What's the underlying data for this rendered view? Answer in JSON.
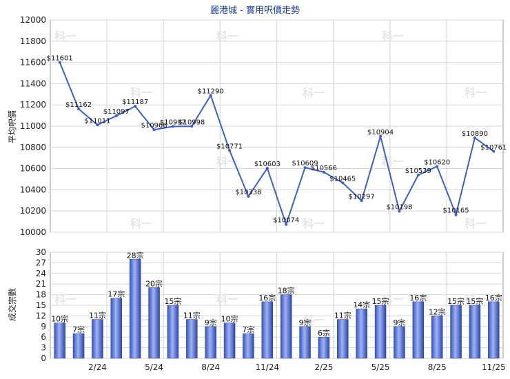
{
  "chart_data": [
    {
      "type": "line",
      "title": "麗港城 - 實用呎價走勢",
      "ylabel": "平均呎價",
      "ylim": [
        10000,
        12000
      ],
      "yticks": [
        10000,
        10200,
        10400,
        10600,
        10800,
        11000,
        11200,
        11400,
        11600,
        11800,
        12000
      ],
      "grid": true,
      "color": "#3a5fcd",
      "labels": [
        "$11601",
        "$11162",
        "$11011",
        "$11097",
        "$11187",
        "$10966",
        "$10997",
        "$10998",
        "$11290",
        "$10771",
        "$10338",
        "$10603",
        "$10074",
        "$10609",
        "$10566",
        "$10465",
        "$10297",
        "$10904",
        "$10198",
        "$10539",
        "$10620",
        "$10165",
        "$10890",
        "$10761"
      ],
      "values": [
        11601,
        11162,
        11011,
        11097,
        11187,
        10966,
        10997,
        10998,
        11290,
        10771,
        10338,
        10603,
        10074,
        10609,
        10566,
        10465,
        10297,
        10904,
        10198,
        10539,
        10620,
        10165,
        10890,
        10761
      ]
    },
    {
      "type": "bar",
      "ylabel": "成交宗數",
      "ylim": [
        0,
        30
      ],
      "yticks": [
        0,
        3,
        6,
        9,
        12,
        15,
        18,
        21,
        24,
        27,
        30
      ],
      "grid": true,
      "color": "#3a5fcd",
      "categories": [
        "2/24",
        "5/24",
        "8/24",
        "11/24",
        "2/25",
        "5/25",
        "8/25",
        "11/25"
      ],
      "labels": [
        "10宗",
        "7宗",
        "11宗",
        "17宗",
        "28宗",
        "20宗",
        "15宗",
        "11宗",
        "9宗",
        "10宗",
        "7宗",
        "16宗",
        "18宗",
        "9宗",
        "6宗",
        "11宗",
        "14宗",
        "15宗",
        "9宗",
        "16宗",
        "12宗",
        "15宗",
        "15宗",
        "16宗"
      ],
      "values": [
        10,
        7,
        11,
        17,
        28,
        20,
        15,
        11,
        9,
        10,
        7,
        16,
        18,
        9,
        6,
        11,
        14,
        15,
        9,
        16,
        12,
        15,
        15,
        16
      ]
    }
  ],
  "watermark": "科一"
}
